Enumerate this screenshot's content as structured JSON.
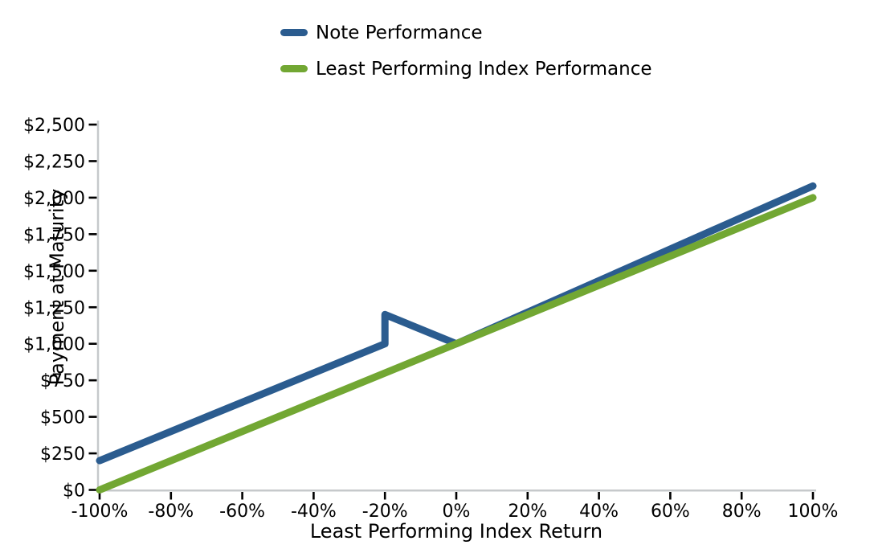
{
  "chart_data": {
    "type": "line",
    "title": "",
    "xlabel": "Least Performing Index Return",
    "ylabel": "Payment at Maturity",
    "xlim": [
      -100,
      100
    ],
    "ylim": [
      0,
      2500
    ],
    "grid": false,
    "legend_position": "top-center-above-plot",
    "x_ticks": {
      "values": [
        -100,
        -80,
        -60,
        -40,
        -20,
        0,
        20,
        40,
        60,
        80,
        100
      ],
      "labels": [
        "-100%",
        "-80%",
        "-60%",
        "-40%",
        "-20%",
        "0%",
        "20%",
        "40%",
        "60%",
        "80%",
        "100%"
      ]
    },
    "y_ticks": {
      "values": [
        0,
        250,
        500,
        750,
        1000,
        1250,
        1500,
        1750,
        2000,
        2250,
        2500
      ],
      "labels": [
        "$0",
        "$250",
        "$500",
        "$750",
        "$1,000",
        "$1,250",
        "$1,500",
        "$1,750",
        "$2,000",
        "$2,250",
        "$2,500"
      ]
    },
    "series": [
      {
        "name": "Note Performance",
        "color": "#2B5C8F",
        "points": [
          [
            -100,
            200
          ],
          [
            -20,
            1000
          ],
          [
            -20,
            1200
          ],
          [
            0,
            1000
          ],
          [
            100,
            2080
          ]
        ]
      },
      {
        "name": "Least Performing Index Performance",
        "color": "#72A733",
        "points": [
          [
            -100,
            0
          ],
          [
            100,
            2000
          ]
        ]
      }
    ]
  },
  "colors": {
    "spine": "#c6c9cb",
    "tick": "#000000",
    "text": "#000000",
    "background": "#ffffff"
  }
}
